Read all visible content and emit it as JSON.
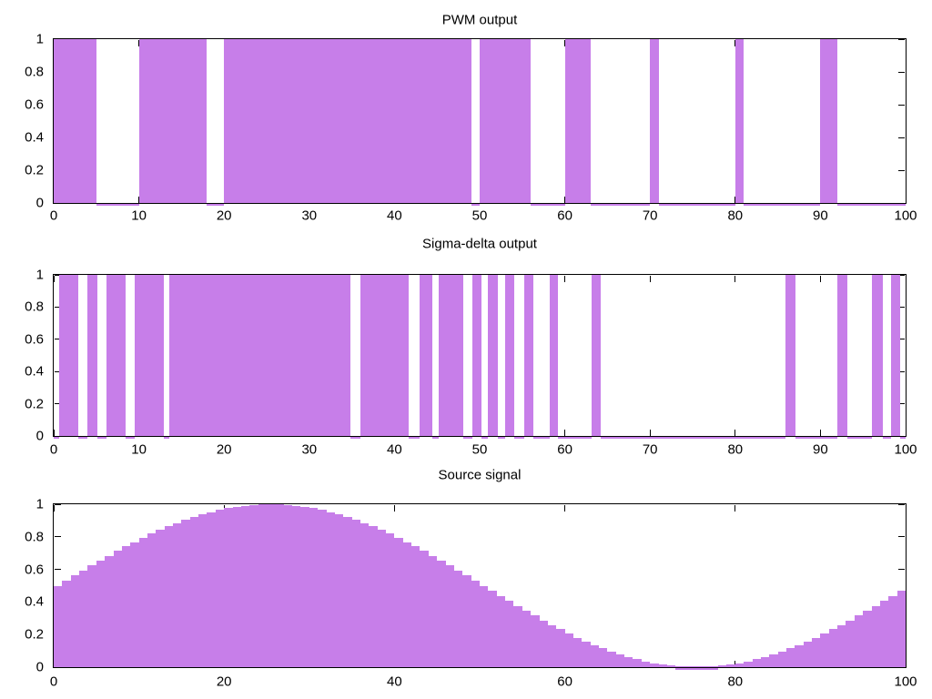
{
  "colors": {
    "fill": "#c77ee9",
    "axis": "#000000",
    "text": "#000000",
    "background": "#ffffff"
  },
  "chart_data": [
    {
      "type": "area",
      "subtype": "binary-pulse-train",
      "title": "PWM output",
      "xlim": [
        0,
        100
      ],
      "ylim": [
        0,
        1
      ],
      "grid": false,
      "x_tick_values": [
        0,
        10,
        20,
        30,
        40,
        50,
        60,
        70,
        80,
        90,
        100
      ],
      "x_tick_labels": [
        "0",
        "10",
        "20",
        "30",
        "40",
        "50",
        "60",
        "70",
        "80",
        "90",
        "100"
      ],
      "y_tick_values": [
        1,
        0.8,
        0.6,
        0.4,
        0.2,
        0
      ],
      "y_tick_labels": [
        "1",
        "0.8",
        "0.6",
        "0.4",
        "0.2",
        "0"
      ],
      "high_segments": [
        [
          0,
          5
        ],
        [
          10,
          18
        ],
        [
          20,
          49
        ],
        [
          50,
          56
        ],
        [
          60,
          63
        ],
        [
          70,
          71
        ],
        [
          80,
          81
        ],
        [
          90,
          92
        ]
      ]
    },
    {
      "type": "area",
      "subtype": "binary-pulse-train",
      "title": "Sigma-delta output",
      "xlim": [
        0,
        100
      ],
      "ylim": [
        0,
        1
      ],
      "grid": false,
      "x_tick_values": [
        0,
        10,
        20,
        30,
        40,
        50,
        60,
        70,
        80,
        90,
        100
      ],
      "x_tick_labels": [
        "0",
        "10",
        "20",
        "30",
        "40",
        "50",
        "60",
        "70",
        "80",
        "90",
        "100"
      ],
      "y_tick_values": [
        1,
        0.8,
        0.6,
        0.4,
        0.2,
        0
      ],
      "y_tick_labels": [
        "1",
        "0.8",
        "0.6",
        "0.4",
        "0.2",
        "0"
      ],
      "high_segments": [
        [
          0.65,
          2.9
        ],
        [
          4.0,
          5.1
        ],
        [
          6.2,
          8.45
        ],
        [
          9.55,
          12.95
        ],
        [
          13.6,
          34.8
        ],
        [
          36.0,
          41.7
        ],
        [
          42.9,
          44.4
        ],
        [
          45.2,
          48.1
        ],
        [
          49.1,
          50.2
        ],
        [
          51.0,
          52.1
        ],
        [
          53.0,
          54.1
        ],
        [
          55.2,
          56.3
        ],
        [
          58.2,
          59.2
        ],
        [
          63.1,
          64.2
        ],
        [
          85.9,
          87.1
        ],
        [
          92.0,
          93.2
        ],
        [
          96.1,
          97.3
        ],
        [
          98.3,
          99.4
        ]
      ]
    },
    {
      "type": "area",
      "subtype": "staircase",
      "title": "Source signal",
      "xlim": [
        0,
        100
      ],
      "ylim": [
        0,
        1
      ],
      "grid": false,
      "x_tick_values": [
        0,
        20,
        40,
        60,
        80,
        100
      ],
      "x_tick_labels": [
        "0",
        "20",
        "40",
        "60",
        "80",
        "100"
      ],
      "y_tick_values": [
        1,
        0.8,
        0.6,
        0.4,
        0.2,
        0
      ],
      "y_tick_labels": [
        "1",
        "0.8",
        "0.6",
        "0.4",
        "0.2",
        "0"
      ],
      "x_step": 1,
      "values": [
        0.5,
        0.531,
        0.563,
        0.594,
        0.624,
        0.655,
        0.684,
        0.713,
        0.741,
        0.768,
        0.794,
        0.819,
        0.842,
        0.864,
        0.885,
        0.905,
        0.922,
        0.938,
        0.952,
        0.965,
        0.976,
        0.984,
        0.991,
        0.996,
        0.999,
        1.0,
        0.999,
        0.996,
        0.991,
        0.984,
        0.976,
        0.965,
        0.952,
        0.938,
        0.922,
        0.905,
        0.885,
        0.864,
        0.842,
        0.819,
        0.794,
        0.768,
        0.741,
        0.713,
        0.684,
        0.655,
        0.624,
        0.594,
        0.563,
        0.531,
        0.5,
        0.469,
        0.437,
        0.406,
        0.376,
        0.345,
        0.316,
        0.287,
        0.259,
        0.232,
        0.206,
        0.181,
        0.158,
        0.136,
        0.115,
        0.095,
        0.078,
        0.062,
        0.048,
        0.035,
        0.024,
        0.016,
        0.009,
        0.004,
        0.001,
        0.0,
        0.001,
        0.004,
        0.009,
        0.016,
        0.024,
        0.035,
        0.048,
        0.062,
        0.078,
        0.095,
        0.115,
        0.136,
        0.158,
        0.181,
        0.206,
        0.232,
        0.259,
        0.287,
        0.316,
        0.345,
        0.376,
        0.406,
        0.437,
        0.469
      ],
      "zero_line_segments_below": [
        [
          73,
          78
        ]
      ],
      "zero_line_segments_inside": [
        [
          73.5,
          77.5
        ]
      ]
    }
  ]
}
